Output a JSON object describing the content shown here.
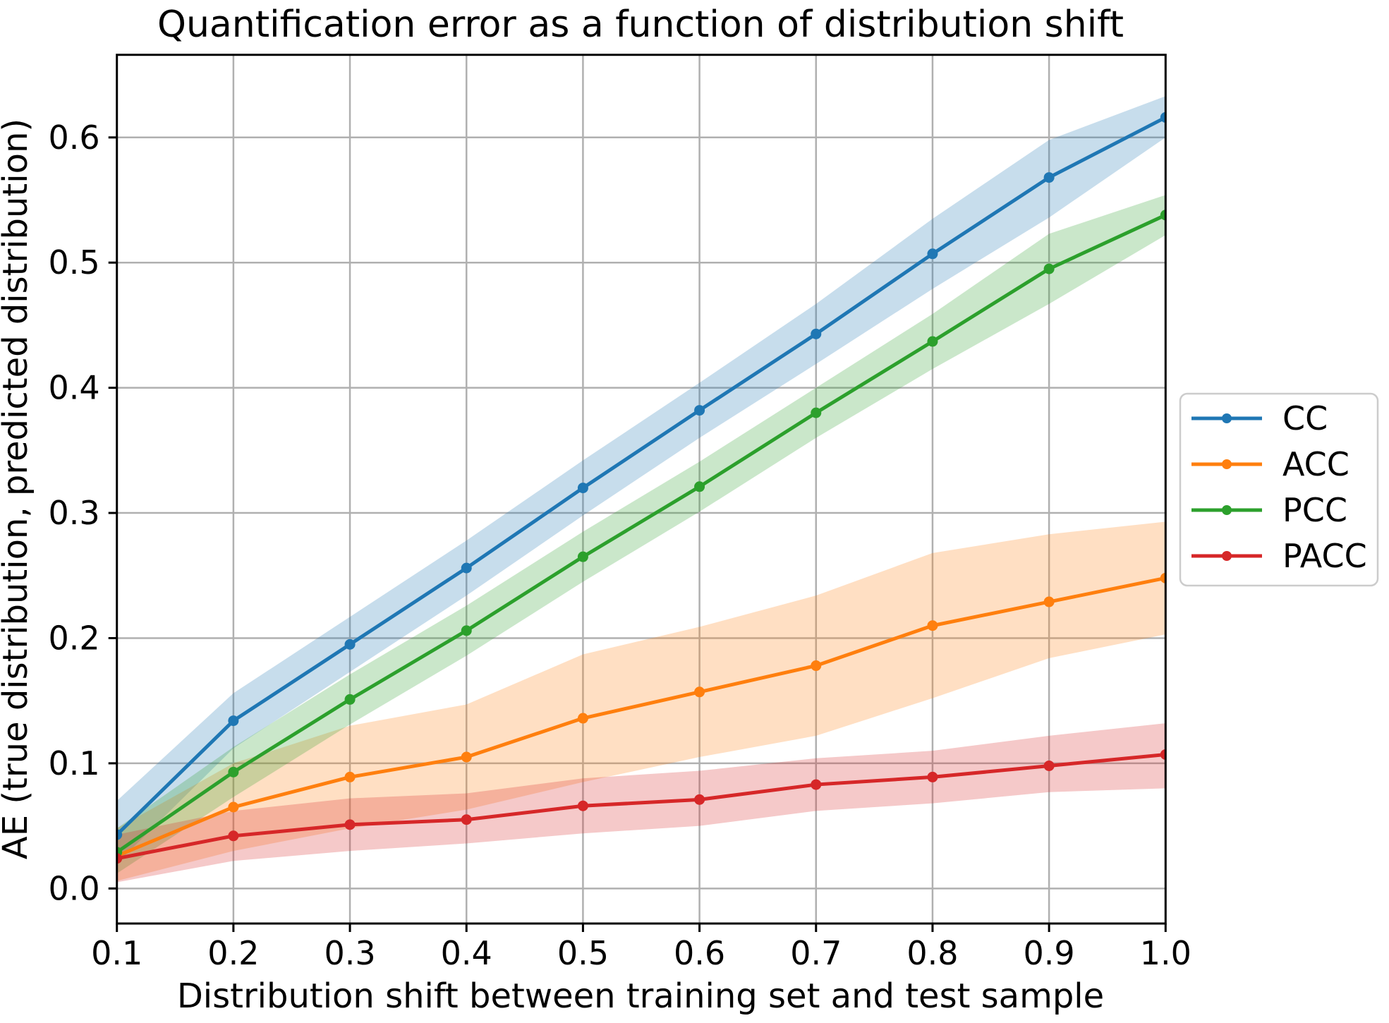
{
  "title": "Quantification error as a function of distribution shift",
  "axes": {
    "xlabel": "Distribution shift between training set and test sample",
    "ylabel": "AE (true distribution, predicted distribution)"
  },
  "chart_data": {
    "type": "line",
    "title": "Quantification error as a function of distribution shift",
    "xlabel": "Distribution shift between training set and test sample",
    "ylabel": "AE (true distribution, predicted distribution)",
    "x": [
      0.1,
      0.2,
      0.3,
      0.4,
      0.5,
      0.6,
      0.7,
      0.8,
      0.9,
      1.0
    ],
    "xlim": [
      0.1,
      1.0
    ],
    "ylim": [
      -0.028,
      0.666
    ],
    "xticks": [
      0.1,
      0.2,
      0.3,
      0.4,
      0.5,
      0.6,
      0.7,
      0.8,
      0.9,
      1.0
    ],
    "yticks": [
      0.0,
      0.1,
      0.2,
      0.3,
      0.4,
      0.5,
      0.6
    ],
    "grid": true,
    "grid_color": "#b0b0b0",
    "band_alpha": 0.25,
    "marker": "circle",
    "legend_position": "outside-right",
    "series": [
      {
        "name": "CC",
        "color": "#1f77b4",
        "values": [
          0.043,
          0.134,
          0.195,
          0.256,
          0.32,
          0.382,
          0.443,
          0.507,
          0.568,
          0.616
        ],
        "band_lower": [
          0.02,
          0.112,
          0.173,
          0.234,
          0.298,
          0.36,
          0.419,
          0.479,
          0.536,
          0.6
        ],
        "band_upper": [
          0.07,
          0.156,
          0.217,
          0.278,
          0.342,
          0.404,
          0.467,
          0.535,
          0.598,
          0.633
        ]
      },
      {
        "name": "ACC",
        "color": "#ff7f0e",
        "values": [
          0.026,
          0.065,
          0.089,
          0.105,
          0.136,
          0.157,
          0.178,
          0.21,
          0.229,
          0.248
        ],
        "band_lower": [
          0.006,
          0.03,
          0.048,
          0.063,
          0.085,
          0.105,
          0.122,
          0.152,
          0.184,
          0.203
        ],
        "band_upper": [
          0.048,
          0.1,
          0.13,
          0.147,
          0.187,
          0.209,
          0.234,
          0.268,
          0.283,
          0.293
        ]
      },
      {
        "name": "PCC",
        "color": "#2ca02c",
        "values": [
          0.029,
          0.093,
          0.151,
          0.206,
          0.265,
          0.321,
          0.38,
          0.437,
          0.495,
          0.538
        ],
        "band_lower": [
          0.012,
          0.073,
          0.131,
          0.186,
          0.245,
          0.301,
          0.36,
          0.415,
          0.467,
          0.522
        ],
        "band_upper": [
          0.048,
          0.113,
          0.171,
          0.226,
          0.285,
          0.341,
          0.4,
          0.459,
          0.523,
          0.554
        ]
      },
      {
        "name": "PACC",
        "color": "#d62728",
        "values": [
          0.024,
          0.042,
          0.051,
          0.055,
          0.066,
          0.071,
          0.083,
          0.089,
          0.098,
          0.107
        ],
        "band_lower": [
          0.005,
          0.022,
          0.03,
          0.036,
          0.044,
          0.05,
          0.062,
          0.068,
          0.077,
          0.08
        ],
        "band_upper": [
          0.043,
          0.062,
          0.072,
          0.076,
          0.088,
          0.094,
          0.104,
          0.11,
          0.122,
          0.132
        ]
      }
    ]
  },
  "legend": {
    "items": [
      {
        "label": "CC",
        "color": "#1f77b4"
      },
      {
        "label": "ACC",
        "color": "#ff7f0e"
      },
      {
        "label": "PCC",
        "color": "#2ca02c"
      },
      {
        "label": "PACC",
        "color": "#d62728"
      }
    ]
  }
}
